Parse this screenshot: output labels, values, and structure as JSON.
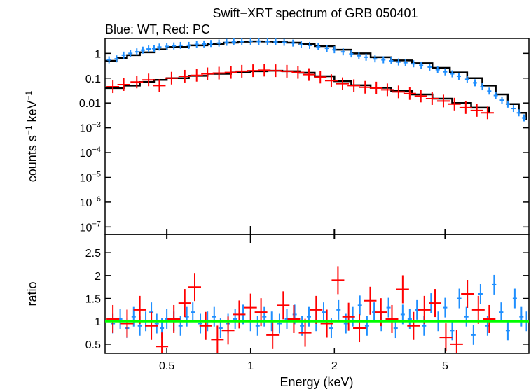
{
  "chart_data": [
    {
      "type": "scatter",
      "title": "Swift−XRT spectrum of GRB 050401",
      "subtitle": "Blue: WT, Red: PC",
      "xlabel": "Energy (keV)",
      "ylabel_main": "counts s",
      "ylabel_sup1": "−1",
      "ylabel_mid": " keV",
      "ylabel_sup2": "−1",
      "xscale": "log",
      "yscale": "log",
      "xlim": [
        0.3,
        10
      ],
      "ylim": [
        5e-08,
        4
      ],
      "x_ticks": [
        {
          "v": 0.5,
          "label": "0.5"
        },
        {
          "v": 1,
          "label": "1"
        },
        {
          "v": 2,
          "label": "2"
        },
        {
          "v": 5,
          "label": "5"
        }
      ],
      "y_ticks": [
        {
          "v": 1,
          "base": "1",
          "exp": ""
        },
        {
          "v": 0.1,
          "base": "0.1",
          "exp": ""
        },
        {
          "v": 0.01,
          "base": "0.01",
          "exp": ""
        },
        {
          "v": 0.001,
          "base": "10",
          "exp": "−3"
        },
        {
          "v": 0.0001,
          "base": "10",
          "exp": "−4"
        },
        {
          "v": 1e-05,
          "base": "10",
          "exp": "−5"
        },
        {
          "v": 1e-06,
          "base": "10",
          "exp": "−6"
        },
        {
          "v": 1e-07,
          "base": "10",
          "exp": "−7"
        }
      ],
      "series": [
        {
          "color": "#1f8fff",
          "points": [
            [
              0.31,
              0.55
            ],
            [
              0.33,
              0.6
            ],
            [
              0.35,
              0.85
            ],
            [
              0.37,
              1.0
            ],
            [
              0.39,
              1.15
            ],
            [
              0.41,
              1.35
            ],
            [
              0.43,
              1.5
            ],
            [
              0.45,
              1.55
            ],
            [
              0.47,
              1.8
            ],
            [
              0.5,
              1.9
            ],
            [
              0.53,
              2.0
            ],
            [
              0.56,
              2.1
            ],
            [
              0.6,
              2.1
            ],
            [
              0.64,
              2.3
            ],
            [
              0.68,
              2.4
            ],
            [
              0.72,
              2.5
            ],
            [
              0.77,
              2.6
            ],
            [
              0.82,
              2.8
            ],
            [
              0.87,
              2.9
            ],
            [
              0.93,
              3.0
            ],
            [
              1.0,
              3.1
            ],
            [
              1.07,
              3.0
            ],
            [
              1.15,
              3.0
            ],
            [
              1.23,
              2.9
            ],
            [
              1.32,
              2.8
            ],
            [
              1.42,
              2.6
            ],
            [
              1.52,
              2.3
            ],
            [
              1.63,
              2.1
            ],
            [
              1.75,
              1.85
            ],
            [
              1.88,
              1.6
            ],
            [
              2.0,
              1.4
            ],
            [
              2.15,
              1.15
            ],
            [
              2.3,
              0.95
            ],
            [
              2.45,
              0.8
            ],
            [
              2.6,
              0.7
            ],
            [
              2.8,
              0.6
            ],
            [
              3.0,
              0.55
            ],
            [
              3.2,
              0.5
            ],
            [
              3.4,
              0.45
            ],
            [
              3.6,
              0.42
            ],
            [
              3.85,
              0.38
            ],
            [
              4.1,
              0.33
            ],
            [
              4.4,
              0.28
            ],
            [
              4.7,
              0.22
            ],
            [
              5.0,
              0.18
            ],
            [
              5.3,
              0.15
            ],
            [
              5.6,
              0.12
            ],
            [
              6.0,
              0.09
            ],
            [
              6.4,
              0.065
            ],
            [
              6.8,
              0.045
            ],
            [
              7.2,
              0.03
            ],
            [
              7.6,
              0.02
            ],
            [
              8.0,
              0.013
            ],
            [
              8.4,
              0.009
            ],
            [
              8.8,
              0.006
            ],
            [
              9.2,
              0.004
            ],
            [
              9.6,
              0.0025
            ]
          ],
          "ratio": [
            [
              0.32,
              0.95
            ],
            [
              0.34,
              1.05
            ],
            [
              0.36,
              0.85
            ],
            [
              0.38,
              1.1
            ],
            [
              0.4,
              0.9
            ],
            [
              0.42,
              1.0
            ],
            [
              0.44,
              1.2
            ],
            [
              0.46,
              0.95
            ],
            [
              0.48,
              0.85
            ],
            [
              0.5,
              1.05
            ],
            [
              0.53,
              1.0
            ],
            [
              0.56,
              0.9
            ],
            [
              0.59,
              1.1
            ],
            [
              0.62,
              1.2
            ],
            [
              0.66,
              0.95
            ],
            [
              0.7,
              1.0
            ],
            [
              0.74,
              1.1
            ],
            [
              0.78,
              0.85
            ],
            [
              0.83,
              0.95
            ],
            [
              0.88,
              1.05
            ],
            [
              0.94,
              1.15
            ],
            [
              1.0,
              1.0
            ],
            [
              1.06,
              0.9
            ],
            [
              1.12,
              1.1
            ],
            [
              1.19,
              1.0
            ],
            [
              1.27,
              0.95
            ],
            [
              1.35,
              1.05
            ],
            [
              1.44,
              1.15
            ],
            [
              1.53,
              0.9
            ],
            [
              1.62,
              1.1
            ],
            [
              1.72,
              1.0
            ],
            [
              1.83,
              1.2
            ],
            [
              1.95,
              0.85
            ],
            [
              2.07,
              1.25
            ],
            [
              2.2,
              0.95
            ],
            [
              2.33,
              1.1
            ],
            [
              2.47,
              1.35
            ],
            [
              2.62,
              0.9
            ],
            [
              2.78,
              1.2
            ],
            [
              2.95,
              1.0
            ],
            [
              3.13,
              1.3
            ],
            [
              3.32,
              0.85
            ],
            [
              3.52,
              1.15
            ],
            [
              3.73,
              1.05
            ],
            [
              3.96,
              1.25
            ],
            [
              4.2,
              0.9
            ],
            [
              4.45,
              1.4
            ],
            [
              4.72,
              1.0
            ],
            [
              5.0,
              1.3
            ],
            [
              5.3,
              0.8
            ],
            [
              5.62,
              1.5
            ],
            [
              5.96,
              1.1
            ],
            [
              6.32,
              0.7
            ],
            [
              6.7,
              1.6
            ],
            [
              7.1,
              0.9
            ],
            [
              7.5,
              1.8
            ],
            [
              7.95,
              1.2
            ],
            [
              8.4,
              0.8
            ],
            [
              8.9,
              1.5
            ],
            [
              9.4,
              1.1
            ],
            [
              9.8,
              1.0
            ]
          ]
        },
        {
          "color": "#ff0000",
          "points": [
            [
              0.32,
              0.045
            ],
            [
              0.35,
              0.055
            ],
            [
              0.39,
              0.07
            ],
            [
              0.43,
              0.085
            ],
            [
              0.47,
              0.05
            ],
            [
              0.52,
              0.1
            ],
            [
              0.58,
              0.12
            ],
            [
              0.64,
              0.13
            ],
            [
              0.7,
              0.15
            ],
            [
              0.77,
              0.16
            ],
            [
              0.85,
              0.17
            ],
            [
              0.93,
              0.19
            ],
            [
              1.02,
              0.2
            ],
            [
              1.12,
              0.21
            ],
            [
              1.23,
              0.2
            ],
            [
              1.35,
              0.19
            ],
            [
              1.48,
              0.17
            ],
            [
              1.62,
              0.14
            ],
            [
              1.78,
              0.11
            ],
            [
              1.95,
              0.08
            ],
            [
              2.14,
              0.06
            ],
            [
              2.35,
              0.05
            ],
            [
              2.58,
              0.043
            ],
            [
              2.83,
              0.04
            ],
            [
              3.1,
              0.034
            ],
            [
              3.4,
              0.028
            ],
            [
              3.73,
              0.024
            ],
            [
              4.09,
              0.019
            ],
            [
              4.49,
              0.015
            ],
            [
              4.93,
              0.012
            ],
            [
              5.4,
              0.009
            ],
            [
              5.93,
              0.0065
            ],
            [
              6.5,
              0.005
            ],
            [
              7.1,
              0.004
            ]
          ],
          "ratio": [
            [
              0.32,
              1.05
            ],
            [
              0.36,
              0.95
            ],
            [
              0.4,
              1.25
            ],
            [
              0.44,
              0.9
            ],
            [
              0.48,
              0.45
            ],
            [
              0.53,
              1.05
            ],
            [
              0.58,
              1.4
            ],
            [
              0.63,
              1.75
            ],
            [
              0.69,
              0.9
            ],
            [
              0.76,
              0.6
            ],
            [
              0.83,
              0.8
            ],
            [
              0.91,
              1.15
            ],
            [
              1.0,
              1.3
            ],
            [
              1.09,
              1.2
            ],
            [
              1.2,
              0.7
            ],
            [
              1.31,
              1.35
            ],
            [
              1.43,
              1.05
            ],
            [
              1.57,
              0.75
            ],
            [
              1.72,
              1.25
            ],
            [
              1.88,
              0.95
            ],
            [
              2.06,
              1.9
            ],
            [
              2.25,
              1.1
            ],
            [
              2.46,
              0.85
            ],
            [
              2.69,
              1.45
            ],
            [
              2.94,
              1.2
            ],
            [
              3.22,
              1.05
            ],
            [
              3.52,
              1.7
            ],
            [
              3.85,
              0.9
            ],
            [
              4.21,
              1.25
            ],
            [
              4.6,
              1.4
            ],
            [
              5.03,
              0.65
            ],
            [
              5.5,
              0.5
            ],
            [
              6.01,
              1.6
            ],
            [
              6.58,
              1.25
            ],
            [
              7.2,
              1.05
            ]
          ]
        }
      ],
      "models": [
        {
          "color": "#000000",
          "points": [
            [
              0.3,
              0.5
            ],
            [
              0.33,
              0.65
            ],
            [
              0.36,
              0.85
            ],
            [
              0.4,
              1.1
            ],
            [
              0.45,
              1.45
            ],
            [
              0.5,
              1.8
            ],
            [
              0.6,
              2.1
            ],
            [
              0.7,
              2.4
            ],
            [
              0.8,
              2.7
            ],
            [
              0.9,
              2.95
            ],
            [
              1.0,
              3.05
            ],
            [
              1.1,
              3.0
            ],
            [
              1.2,
              2.9
            ],
            [
              1.35,
              2.7
            ],
            [
              1.5,
              2.35
            ],
            [
              1.7,
              1.95
            ],
            [
              2.0,
              1.4
            ],
            [
              2.3,
              1.0
            ],
            [
              2.7,
              0.7
            ],
            [
              3.2,
              0.52
            ],
            [
              3.8,
              0.4
            ],
            [
              4.5,
              0.26
            ],
            [
              5.2,
              0.17
            ],
            [
              6.0,
              0.1
            ],
            [
              6.8,
              0.05
            ],
            [
              7.6,
              0.022
            ],
            [
              8.4,
              0.009
            ],
            [
              9.2,
              0.004
            ],
            [
              9.8,
              0.002
            ]
          ]
        },
        {
          "color": "#000000",
          "points": [
            [
              0.3,
              0.04
            ],
            [
              0.35,
              0.05
            ],
            [
              0.4,
              0.07
            ],
            [
              0.45,
              0.085
            ],
            [
              0.5,
              0.1
            ],
            [
              0.6,
              0.125
            ],
            [
              0.7,
              0.15
            ],
            [
              0.85,
              0.17
            ],
            [
              1.0,
              0.19
            ],
            [
              1.15,
              0.2
            ],
            [
              1.3,
              0.19
            ],
            [
              1.5,
              0.165
            ],
            [
              1.7,
              0.12
            ],
            [
              2.0,
              0.075
            ],
            [
              2.3,
              0.052
            ],
            [
              2.7,
              0.041
            ],
            [
              3.2,
              0.031
            ],
            [
              3.8,
              0.022
            ],
            [
              4.5,
              0.015
            ],
            [
              5.3,
              0.01
            ],
            [
              6.2,
              0.0065
            ],
            [
              7.2,
              0.004
            ]
          ]
        }
      ],
      "ratio_panel": {
        "ylabel": "ratio",
        "ylim": [
          0.3,
          2.9
        ],
        "y_ticks": [
          {
            "v": 0.5,
            "label": "0.5"
          },
          {
            "v": 1,
            "label": "1"
          },
          {
            "v": 1.5,
            "label": "1.5"
          },
          {
            "v": 2,
            "label": "2"
          },
          {
            "v": 2.5,
            "label": "2.5"
          }
        ],
        "reference_value": 1,
        "reference_color": "#00ff00"
      },
      "grid": false,
      "legend": "none"
    }
  ]
}
